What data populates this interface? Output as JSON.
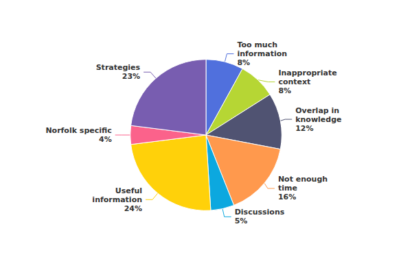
{
  "chart_data": {
    "type": "pie",
    "categories": [
      "Too much\ninformation",
      "Inappropriate\ncontext",
      "Overlap in\nknowledge",
      "Not enough\ntime",
      "Discussions",
      "Useful\ninformation",
      "Norfolk specific",
      "Strategies"
    ],
    "values": [
      8,
      8,
      12,
      16,
      5,
      24,
      4,
      23
    ],
    "value_labels": [
      "8%",
      "8%",
      "12%",
      "16%",
      "5%",
      "24%",
      "4%",
      "23%"
    ],
    "data_labels": true
  }
}
